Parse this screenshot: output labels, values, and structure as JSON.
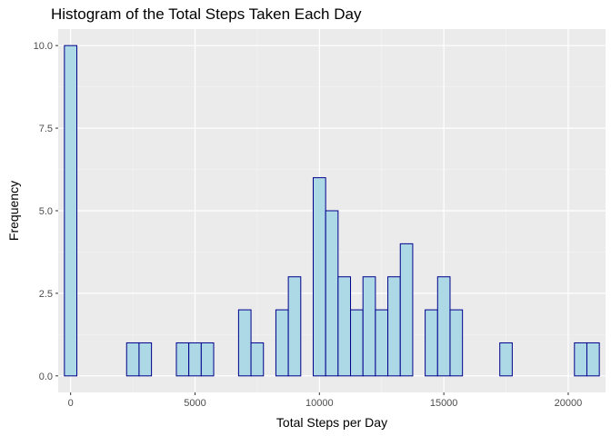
{
  "chart_data": {
    "type": "bar",
    "title": "Histogram of the Total Steps Taken Each Day",
    "xlabel": "Total Steps per Day",
    "ylabel": "Frequency",
    "bin_width": 500,
    "xlim": [
      -500,
      21500
    ],
    "ylim": [
      -0.5,
      10.5
    ],
    "x_ticks": [
      0,
      5000,
      10000,
      15000,
      20000
    ],
    "x_tick_labels": [
      "0",
      "5000",
      "10000",
      "15000",
      "20000"
    ],
    "y_ticks": [
      0,
      2.5,
      5,
      7.5,
      10
    ],
    "y_tick_labels": [
      "0.0",
      "2.5",
      "5.0",
      "7.5",
      "10.0"
    ],
    "grid": true,
    "fill_color": "#add8e6",
    "edge_color": "#00008b",
    "panel_color": "#ebebeb",
    "bins": [
      {
        "x": 0,
        "count": 10
      },
      {
        "x": 2500,
        "count": 1
      },
      {
        "x": 3000,
        "count": 1
      },
      {
        "x": 4500,
        "count": 1
      },
      {
        "x": 5000,
        "count": 1
      },
      {
        "x": 5500,
        "count": 1
      },
      {
        "x": 7000,
        "count": 2
      },
      {
        "x": 7500,
        "count": 1
      },
      {
        "x": 8500,
        "count": 2
      },
      {
        "x": 9000,
        "count": 3
      },
      {
        "x": 10000,
        "count": 6
      },
      {
        "x": 10500,
        "count": 5
      },
      {
        "x": 11000,
        "count": 3
      },
      {
        "x": 11500,
        "count": 2
      },
      {
        "x": 12000,
        "count": 3
      },
      {
        "x": 12500,
        "count": 2
      },
      {
        "x": 13000,
        "count": 3
      },
      {
        "x": 13500,
        "count": 4
      },
      {
        "x": 14500,
        "count": 2
      },
      {
        "x": 15000,
        "count": 3
      },
      {
        "x": 15500,
        "count": 2
      },
      {
        "x": 17500,
        "count": 1
      },
      {
        "x": 20500,
        "count": 1
      },
      {
        "x": 21000,
        "count": 1
      }
    ]
  }
}
